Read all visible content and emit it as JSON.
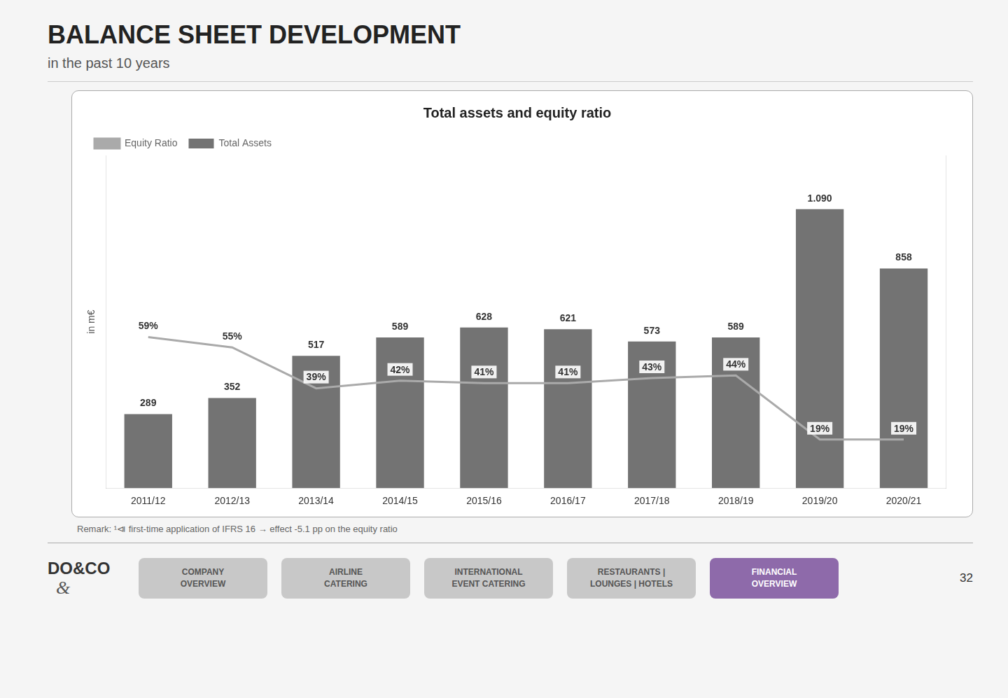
{
  "title": "BALANCE SHEET DEVELOPMENT",
  "subtitle": "in the past 10 years",
  "remark": "Remark:  ¹⧏ first-time application of IFRS 16 → effect -5.1 pp on the equity ratio",
  "logo": "DO&CO",
  "logo_mark": "&",
  "nav_buttons": [
    {
      "label": "COMPANY\nOVERVIEW",
      "color": "#c8c8c8",
      "text_color": "#555555"
    },
    {
      "label": "AIRLINE\nCATERING",
      "color": "#c8c8c8",
      "text_color": "#555555"
    },
    {
      "label": "INTERNATIONAL\nEVENT CATERING",
      "color": "#c8c8c8",
      "text_color": "#555555"
    },
    {
      "label": "RESTAURANTS |\nLOUNGES | HOTELS",
      "color": "#c8c8c8",
      "text_color": "#555555"
    },
    {
      "label": "FINANCIAL\nOVERVIEW",
      "color": "#8e6aaa",
      "text_color": "#ffffff"
    }
  ],
  "page_number": "32",
  "chart_data": {
    "type": "bar",
    "title": "Total assets and equity ratio",
    "ylabel": "in m€",
    "categories": [
      "2011/12",
      "2012/13",
      "2013/14",
      "2014/15",
      "2015/16",
      "2016/17",
      "2017/18",
      "2018/19",
      "2019/20",
      "2020/21"
    ],
    "series": [
      {
        "name": "Total Assets",
        "type": "bar",
        "color": "#737373",
        "values": [
          289,
          352,
          517,
          589,
          628,
          621,
          573,
          589,
          1090,
          858
        ],
        "value_labels": [
          "289",
          "352",
          "517",
          "589",
          "628",
          "621",
          "573",
          "589",
          "1.090",
          "858"
        ]
      },
      {
        "name": "Equity Ratio",
        "type": "line",
        "color": "#aaaaaa",
        "axis": "y2",
        "values": [
          59,
          55,
          39,
          42,
          41,
          41,
          43,
          44,
          19,
          19
        ],
        "value_labels": [
          "59%",
          "55%",
          "39%",
          "42%",
          "41%",
          "41%",
          "43%",
          "44%",
          "19%",
          "19%"
        ]
      }
    ],
    "ylim": [
      0,
      1300
    ],
    "y2lim": [
      0,
      130
    ],
    "tick_labels": "x",
    "grid": false,
    "legend": "upper left",
    "data_labels": true
  }
}
